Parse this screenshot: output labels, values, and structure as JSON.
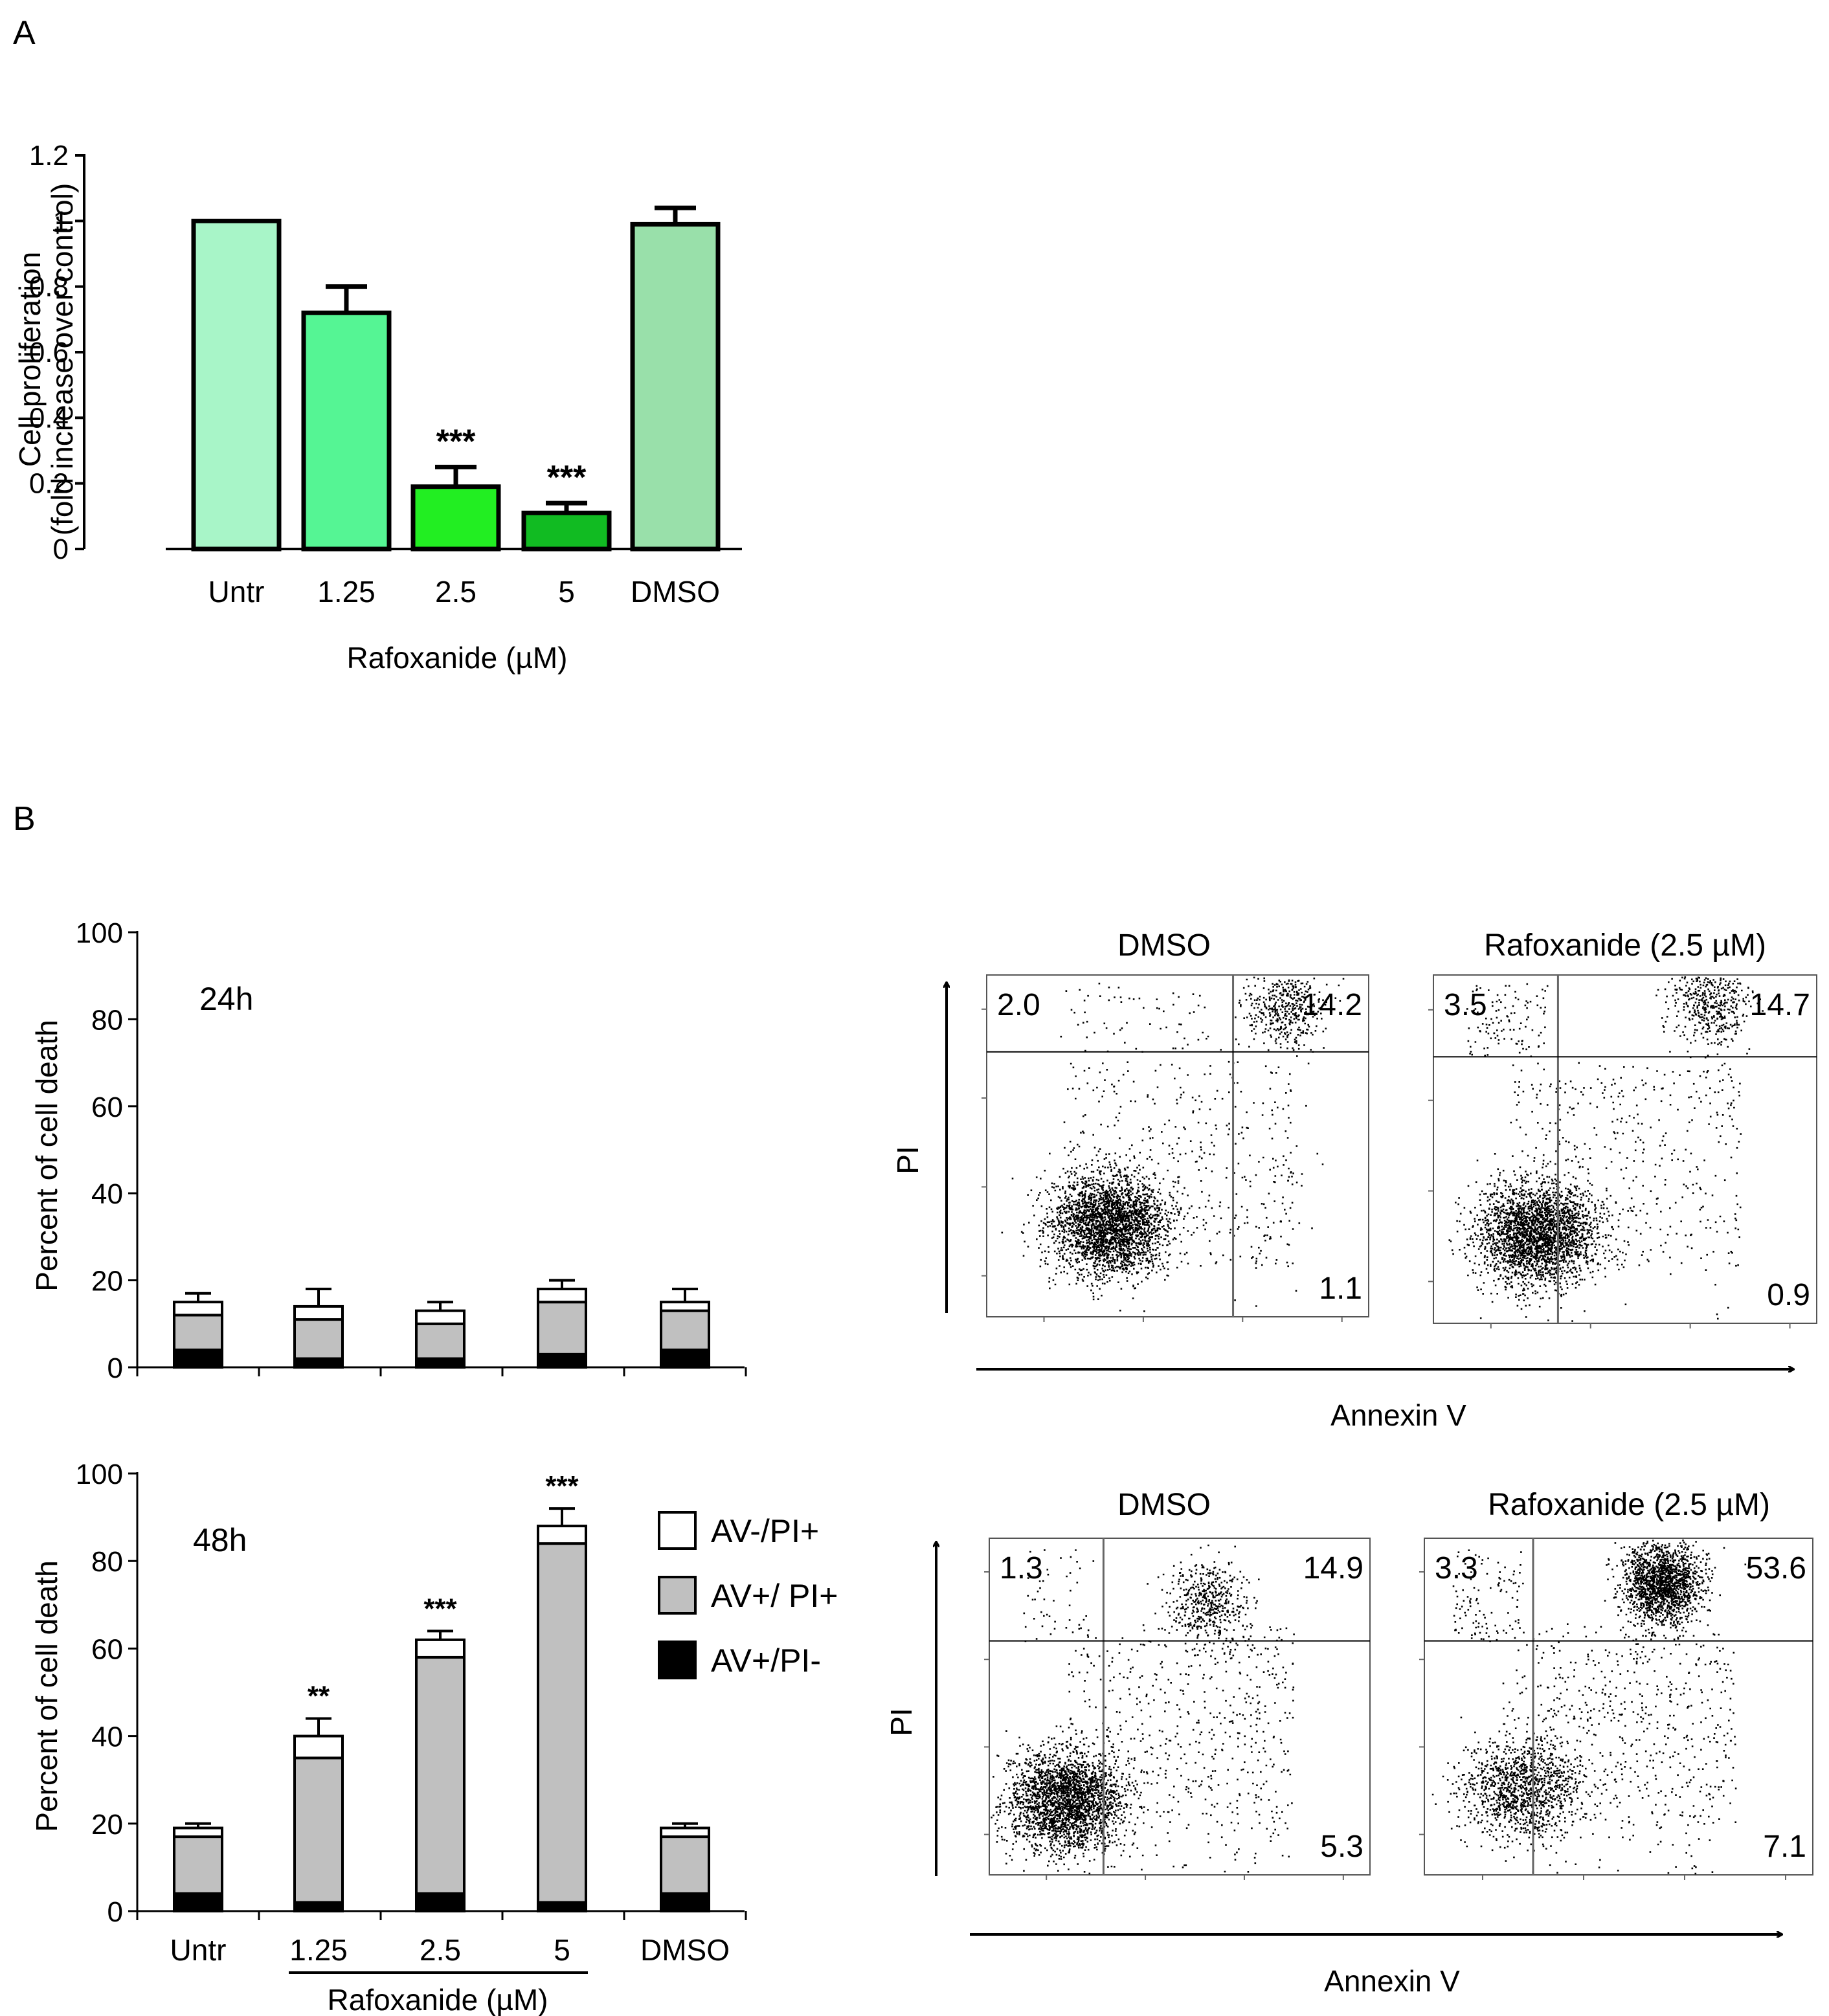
{
  "colors": {
    "bar_untr": "#a8f5c8",
    "bar_125": "#55f594",
    "bar_25": "#22ee22",
    "bar_5": "#11bb22",
    "bar_dmso": "#99e0aa",
    "av_neg_pi_pos": "#ffffff",
    "av_pos_pi_pos": "#c0c0c0",
    "av_pos_pi_neg": "#000000"
  },
  "chart_data": [
    {
      "id": "A",
      "type": "bar",
      "panel_label": "A",
      "ylabel_line1": "Cell proliferation",
      "ylabel_line2": "(fold increase over control)",
      "ylim": [
        0,
        1.2
      ],
      "yticks": [
        "0",
        "0.2",
        "0.4",
        "0.6",
        "0.8",
        "1",
        "1.2"
      ],
      "categories": [
        "Untr",
        "1.25",
        "2.5",
        "5",
        "DMSO"
      ],
      "values": [
        1.0,
        0.72,
        0.19,
        0.11,
        0.99
      ],
      "errors": [
        0,
        0.08,
        0.06,
        0.03,
        0.05
      ],
      "significance": [
        "",
        "",
        "***",
        "***",
        ""
      ],
      "group_label": "Rafoxanide (µM)"
    },
    {
      "id": "B-24h",
      "type": "bar",
      "stacked": true,
      "panel_label": "B",
      "time_label": "24h",
      "ylabel": "Percent of cell death",
      "ylim": [
        0,
        100
      ],
      "yticks": [
        "0",
        "20",
        "40",
        "60",
        "80",
        "100"
      ],
      "categories": [
        "Untr",
        "1.25",
        "2.5",
        "5",
        "DMSO"
      ],
      "series": [
        {
          "name": "AV+/PI-",
          "values": [
            4,
            2,
            2,
            3,
            4
          ],
          "errors": [
            2,
            2,
            1,
            2,
            2
          ]
        },
        {
          "name": "AV+/ PI+",
          "values": [
            8,
            9,
            8,
            12,
            9
          ]
        },
        {
          "name": "AV-/PI+",
          "values": [
            3,
            3,
            3,
            3,
            2
          ],
          "errors": [
            2,
            4,
            2,
            2,
            3
          ]
        }
      ],
      "significance": [
        "",
        "",
        "",
        "",
        ""
      ]
    },
    {
      "id": "B-48h",
      "type": "bar",
      "stacked": true,
      "time_label": "48h",
      "ylabel": "Percent of cell death",
      "ylim": [
        0,
        100
      ],
      "yticks": [
        "0",
        "20",
        "40",
        "60",
        "80",
        "100"
      ],
      "categories": [
        "Untr",
        "1.25",
        "2.5",
        "5",
        "DMSO"
      ],
      "series": [
        {
          "name": "AV+/PI-",
          "values": [
            4,
            2,
            4,
            2,
            4
          ],
          "errors": [
            3,
            1,
            3,
            2,
            3
          ]
        },
        {
          "name": "AV+/ PI+",
          "values": [
            13,
            33,
            54,
            82,
            13
          ]
        },
        {
          "name": "AV-/PI+",
          "values": [
            2,
            5,
            4,
            4,
            2
          ],
          "errors": [
            1,
            4,
            2,
            4,
            1
          ]
        }
      ],
      "significance": [
        "",
        "**",
        "***",
        "***",
        ""
      ],
      "group_label": "Rafoxanide (µM)",
      "legend": [
        "AV-/PI+",
        "AV+/ PI+",
        "AV+/PI-"
      ]
    },
    {
      "id": "flow-24h",
      "type": "scatter",
      "xlabel": "Annexin V",
      "ylabel": "PI",
      "plots": [
        {
          "title": "DMSO",
          "quadrants": {
            "upper_left": "2.0",
            "upper_right": "14.2",
            "lower_right": "1.1"
          }
        },
        {
          "title": "Rafoxanide (2.5 µM)",
          "quadrants": {
            "upper_left": "3.5",
            "upper_right": "14.7",
            "lower_right": "0.9"
          }
        }
      ]
    },
    {
      "id": "flow-48h",
      "type": "scatter",
      "xlabel": "Annexin V",
      "ylabel": "PI",
      "plots": [
        {
          "title": "DMSO",
          "quadrants": {
            "upper_left": "1.3",
            "upper_right": "14.9",
            "lower_right": "5.3"
          }
        },
        {
          "title": "Rafoxanide (2.5 µM)",
          "quadrants": {
            "upper_left": "3.3",
            "upper_right": "53.6",
            "lower_right": "7.1"
          }
        }
      ]
    }
  ]
}
